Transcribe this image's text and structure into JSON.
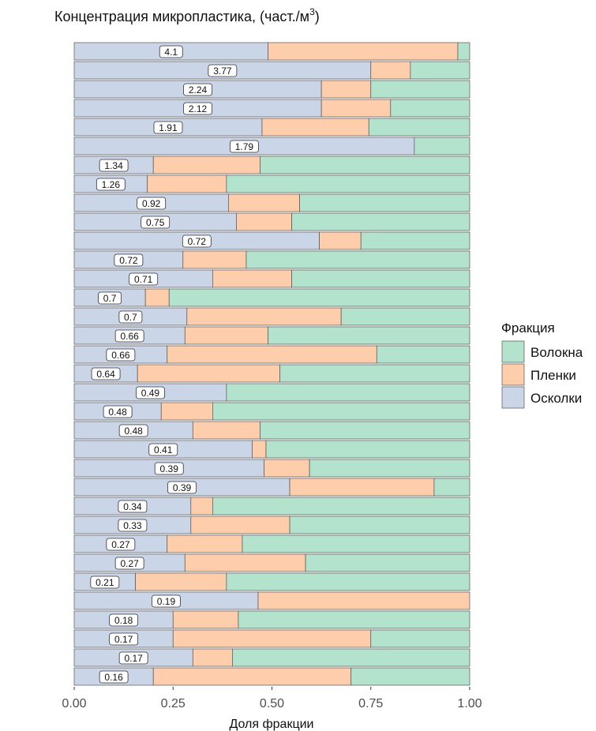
{
  "chart_data": {
    "type": "bar",
    "orientation": "horizontal",
    "stacked": "fill",
    "title_main": "Концентрация микропластика, (част./м",
    "title_sup": "3",
    "title_end": ")",
    "xlabel": "Доля фракции",
    "ylabel": "",
    "xlim": [
      0,
      1
    ],
    "xticks": [
      "0.00",
      "0.25",
      "0.50",
      "0.75",
      "1.00"
    ],
    "legend": {
      "title": "Фракция",
      "position": "right",
      "entries": [
        "Волокна",
        "Пленки",
        "Осколки"
      ]
    },
    "colors": {
      "Осколки": "#cbd5e8",
      "Пленки": "#fdcdac",
      "Волокна": "#b3e2cd"
    },
    "categories": [
      "4.1",
      "3.77",
      "2.24",
      "2.12",
      "1.91",
      "1.79",
      "1.34",
      "1.26",
      "0.92",
      "0.75",
      "0.72",
      "0.72",
      "0.71",
      "0.7",
      "0.7",
      "0.66",
      "0.66",
      "0.64",
      "0.49",
      "0.48",
      "0.48",
      "0.41",
      "0.39",
      "0.39",
      "0.34",
      "0.33",
      "0.27",
      "0.27",
      "0.21",
      "0.19",
      "0.18",
      "0.17",
      "0.17",
      "0.16"
    ],
    "series": [
      {
        "name": "Осколки",
        "values": [
          0.49,
          0.75,
          0.625,
          0.625,
          0.475,
          0.86,
          0.2,
          0.185,
          0.39,
          0.41,
          0.62,
          0.275,
          0.35,
          0.18,
          0.285,
          0.28,
          0.235,
          0.16,
          0.385,
          0.22,
          0.3,
          0.45,
          0.48,
          0.545,
          0.295,
          0.295,
          0.235,
          0.28,
          0.155,
          0.465,
          0.25,
          0.25,
          0.3,
          0.2
        ]
      },
      {
        "name": "Пленки",
        "values": [
          0.48,
          0.1,
          0.125,
          0.175,
          0.27,
          0.0,
          0.27,
          0.2,
          0.18,
          0.14,
          0.105,
          0.16,
          0.2,
          0.06,
          0.39,
          0.21,
          0.53,
          0.36,
          0.0,
          0.13,
          0.17,
          0.035,
          0.115,
          0.365,
          0.055,
          0.25,
          0.19,
          0.305,
          0.23,
          0.535,
          0.165,
          0.5,
          0.1,
          0.5
        ]
      },
      {
        "name": "Волокна",
        "values": [
          0.03,
          0.15,
          0.25,
          0.2,
          0.255,
          0.14,
          0.53,
          0.615,
          0.43,
          0.45,
          0.275,
          0.565,
          0.45,
          0.76,
          0.325,
          0.51,
          0.235,
          0.48,
          0.615,
          0.65,
          0.53,
          0.515,
          0.405,
          0.09,
          0.65,
          0.455,
          0.575,
          0.415,
          0.615,
          0.0,
          0.585,
          0.25,
          0.6,
          0.3
        ]
      }
    ]
  }
}
